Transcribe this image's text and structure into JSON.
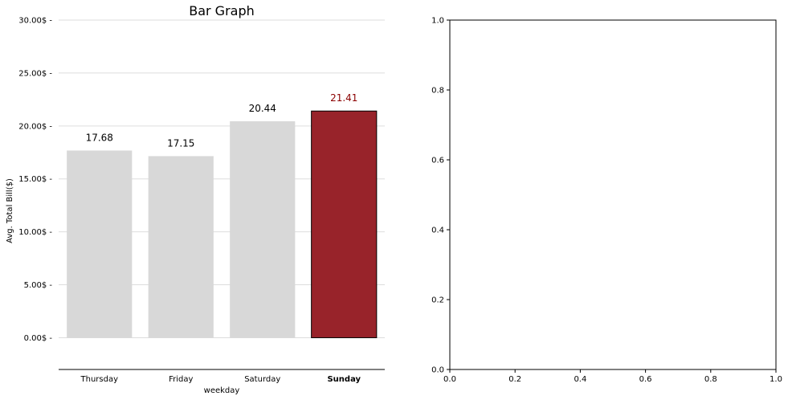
{
  "chart_data": [
    {
      "type": "bar",
      "title": "Bar Graph",
      "xlabel": "weekday",
      "ylabel": "Avg. Total Bill($)",
      "categories": [
        "Thursday",
        "Friday",
        "Saturday",
        "Sunday"
      ],
      "values": [
        17.68,
        17.15,
        20.44,
        21.41
      ],
      "data_labels": [
        "17.68",
        "17.15",
        "20.44",
        "21.41"
      ],
      "ylim": [
        -3,
        30
      ],
      "yticks": [
        0,
        5,
        10,
        15,
        20,
        25,
        30
      ],
      "ytick_labels": [
        "0.00$ -",
        "5.00$ -",
        "10.00$ -",
        "15.00$ -",
        "20.00$ -",
        "25.00$ -",
        "30.00$ -"
      ],
      "grid": "horizontal",
      "highlight_category": "Sunday",
      "colors": {
        "default_bar": "#d8d8d8",
        "highlight_bar": "#98232a",
        "highlight_text": "#8b0000",
        "grid": "#dddddd"
      }
    },
    {
      "type": "empty",
      "title": "",
      "xlim": [
        0,
        1
      ],
      "ylim": [
        0,
        1
      ],
      "xticks": [
        "0.0",
        "0.2",
        "0.4",
        "0.6",
        "0.8",
        "1.0"
      ],
      "yticks": [
        "0.0",
        "0.2",
        "0.4",
        "0.6",
        "0.8",
        "1.0"
      ]
    }
  ]
}
